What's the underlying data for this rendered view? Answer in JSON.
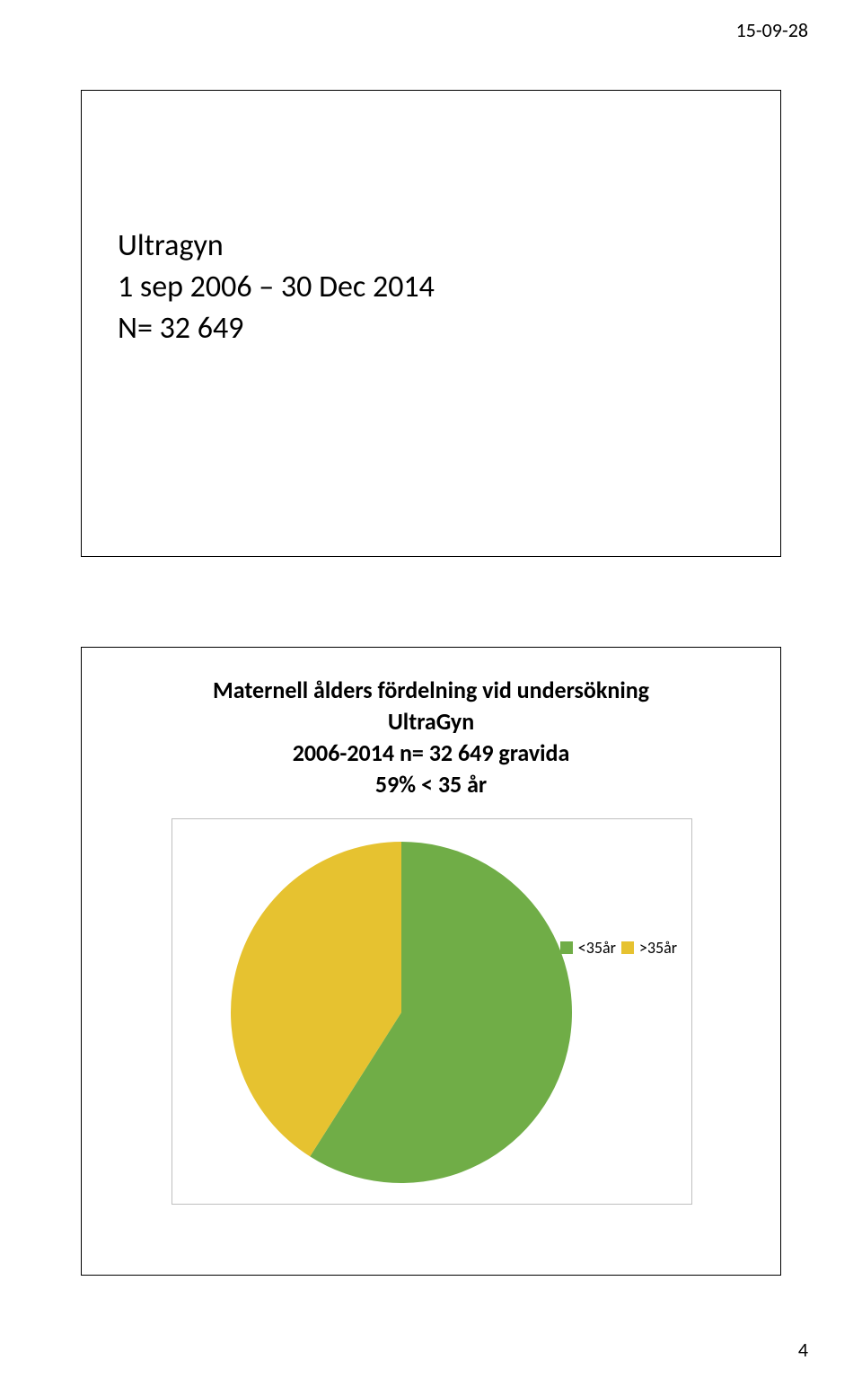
{
  "header": {
    "date": "15-09-28",
    "page_number": "4"
  },
  "panel_top": {
    "line1": "Ultragyn",
    "line2": "1 sep 2006 – 30 Dec 2014",
    "line3": "N= 32 649"
  },
  "panel_bottom": {
    "title_line1": "Maternell ålders fördelning vid undersökning",
    "title_line2": "UltraGyn",
    "title_line3": "2006-2014 n= 32 649 gravida",
    "title_line4": "59% < 35 år"
  },
  "chart": {
    "type": "pie",
    "categories": [
      "<35år",
      ">35år"
    ],
    "values": [
      59,
      41
    ],
    "slice_colors": [
      "#70ad47",
      "#e6c230"
    ],
    "background_color": "#ffffff",
    "border_color": "#bfbfbf",
    "legend_fontsize": 18,
    "start_angle_deg": -90,
    "legend_position": "right"
  }
}
